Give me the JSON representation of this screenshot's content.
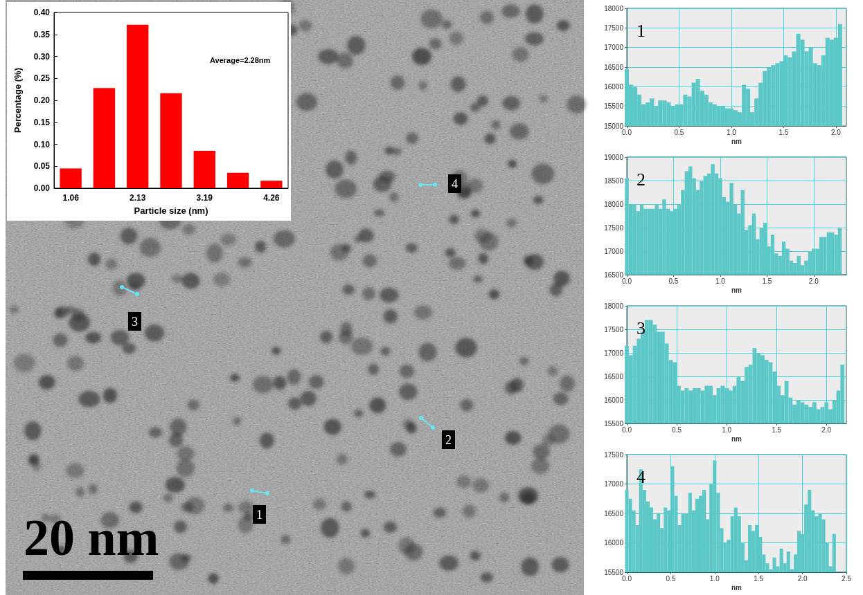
{
  "micrograph": {
    "scale_bar": "20 nm",
    "markers": [
      "1",
      "2",
      "3",
      "4"
    ]
  },
  "chart_data": [
    {
      "type": "bar",
      "x_label": "Particle size (nm)",
      "y_label": "Percentage (%)",
      "annotations": [
        "Average=2.28nm"
      ],
      "categories": [
        "1.06",
        null,
        "2.13",
        null,
        "3.19",
        null,
        "4.26"
      ],
      "values": [
        0.045,
        0.228,
        0.372,
        0.216,
        0.085,
        0.035,
        0.017
      ],
      "color": "#ff0000",
      "ylim": [
        0,
        0.4
      ],
      "yticks": [
        {
          "value": 0,
          "label": "0.00"
        },
        {
          "value": 0.05,
          "label": "0.05"
        },
        {
          "value": 0.1,
          "label": "0.10"
        },
        {
          "value": 0.15,
          "label": "0.15"
        },
        {
          "value": 0.2,
          "label": "0.20"
        },
        {
          "value": 0.25,
          "label": "0.25"
        },
        {
          "value": 0.3,
          "label": "0.30"
        },
        {
          "value": 0.35,
          "label": "0.35"
        },
        {
          "value": 0.4,
          "label": "0.40"
        }
      ],
      "grid": false
    },
    {
      "type": "bar",
      "title": "1",
      "x_label": "nm",
      "x": [
        0,
        0.04,
        0.08,
        0.12,
        0.16,
        0.2,
        0.24,
        0.28,
        0.32,
        0.36,
        0.4,
        0.44,
        0.48,
        0.52,
        0.56,
        0.6,
        0.64,
        0.68,
        0.72,
        0.76,
        0.8,
        0.84,
        0.88,
        0.92,
        0.96,
        1,
        1.04,
        1.08,
        1.12,
        1.16,
        1.2,
        1.24,
        1.28,
        1.32,
        1.36,
        1.4,
        1.44,
        1.48,
        1.52,
        1.56,
        1.6,
        1.64,
        1.68,
        1.72,
        1.76,
        1.8,
        1.84,
        1.88,
        1.92,
        1.96,
        2,
        2.04
      ],
      "values": [
        16450,
        16050,
        16000,
        15800,
        15550,
        15600,
        15700,
        15500,
        15650,
        15650,
        15600,
        15500,
        15550,
        15550,
        15800,
        15750,
        16100,
        16200,
        15900,
        15800,
        15600,
        15550,
        15500,
        15500,
        15450,
        15450,
        15400,
        15350,
        16050,
        15950,
        15350,
        15700,
        16100,
        16400,
        16500,
        16550,
        16600,
        16650,
        16800,
        16750,
        16900,
        17350,
        17200,
        16900,
        17000,
        16600,
        16550,
        16800,
        17250,
        17200,
        17250,
        17600
      ],
      "color": "#5cc8c8",
      "xlim": [
        0,
        2.1
      ],
      "xticks": [
        {
          "value": 0,
          "label": "0.0"
        },
        {
          "value": 0.5,
          "label": "0.5"
        },
        {
          "value": 1,
          "label": "1.0"
        },
        {
          "value": 1.5,
          "label": "1.5"
        },
        {
          "value": 2,
          "label": "2.0"
        }
      ],
      "ylim": [
        15000,
        18000
      ],
      "yticks": [
        15000,
        15500,
        16000,
        16500,
        17000,
        17500,
        18000
      ],
      "grid": true
    },
    {
      "type": "bar",
      "title": "2",
      "x_label": "nm",
      "x": [
        0,
        0.04,
        0.08,
        0.12,
        0.16,
        0.2,
        0.24,
        0.28,
        0.32,
        0.36,
        0.4,
        0.44,
        0.48,
        0.52,
        0.56,
        0.6,
        0.64,
        0.68,
        0.72,
        0.76,
        0.8,
        0.84,
        0.88,
        0.92,
        0.96,
        1,
        1.04,
        1.08,
        1.12,
        1.16,
        1.2,
        1.24,
        1.28,
        1.32,
        1.36,
        1.4,
        1.44,
        1.48,
        1.52,
        1.56,
        1.6,
        1.64,
        1.68,
        1.72,
        1.76,
        1.8,
        1.84,
        1.88,
        1.92,
        1.96,
        2,
        2.04,
        2.08,
        2.12,
        2.16,
        2.2,
        2.24,
        2.28
      ],
      "values": [
        18550,
        18000,
        18000,
        17850,
        18000,
        17900,
        17900,
        17900,
        18000,
        17900,
        18100,
        17900,
        17850,
        17900,
        18000,
        18300,
        18700,
        18800,
        18550,
        18300,
        18500,
        18600,
        18650,
        18850,
        18650,
        18550,
        18150,
        18050,
        18450,
        18000,
        17800,
        18300,
        17450,
        17550,
        17800,
        17250,
        17500,
        17600,
        17100,
        17350,
        16950,
        16900,
        17200,
        17050,
        16800,
        16750,
        16900,
        16700,
        16800,
        17000,
        17050,
        17050,
        17300,
        17300,
        17400,
        17400,
        17350,
        17500
      ],
      "color": "#5cc8c8",
      "xlim": [
        0,
        2.35
      ],
      "xticks": [
        {
          "value": 0,
          "label": "0.0"
        },
        {
          "value": 0.5,
          "label": "0.5"
        },
        {
          "value": 1,
          "label": "1.0"
        },
        {
          "value": 1.5,
          "label": "1.5"
        },
        {
          "value": 2,
          "label": "2.0"
        }
      ],
      "ylim": [
        16500,
        19000
      ],
      "yticks": [
        16500,
        17000,
        17500,
        18000,
        18500,
        19000
      ],
      "grid": true
    },
    {
      "type": "bar",
      "title": "3",
      "x_label": "nm",
      "x": [
        0,
        0.04,
        0.08,
        0.12,
        0.16,
        0.2,
        0.24,
        0.28,
        0.32,
        0.36,
        0.4,
        0.44,
        0.48,
        0.52,
        0.56,
        0.6,
        0.64,
        0.68,
        0.72,
        0.76,
        0.8,
        0.84,
        0.88,
        0.92,
        0.96,
        1,
        1.04,
        1.08,
        1.12,
        1.16,
        1.2,
        1.24,
        1.28,
        1.32,
        1.36,
        1.4,
        1.44,
        1.48,
        1.52,
        1.56,
        1.6,
        1.64,
        1.68,
        1.72,
        1.76,
        1.8,
        1.84,
        1.88,
        1.92,
        1.96,
        2,
        2.04,
        2.08,
        2.12,
        2.16
      ],
      "values": [
        17150,
        16950,
        17150,
        17300,
        17450,
        17700,
        17700,
        17600,
        17450,
        17450,
        17200,
        16850,
        16800,
        16300,
        16200,
        16250,
        16200,
        16250,
        16250,
        16200,
        16300,
        16300,
        16100,
        16250,
        16300,
        16250,
        16200,
        16300,
        16500,
        16400,
        16700,
        16750,
        17100,
        17000,
        16950,
        16850,
        16800,
        16600,
        16300,
        16100,
        16400,
        16050,
        15900,
        16000,
        15950,
        15900,
        15850,
        15950,
        15800,
        15850,
        15950,
        15800,
        16000,
        16200,
        16750
      ],
      "color": "#5cc8c8",
      "xlim": [
        0,
        2.2
      ],
      "xticks": [
        {
          "value": 0,
          "label": "0.0"
        },
        {
          "value": 0.5,
          "label": "0.5"
        },
        {
          "value": 1,
          "label": "1.0"
        },
        {
          "value": 1.5,
          "label": "1.5"
        },
        {
          "value": 2,
          "label": "2.0"
        }
      ],
      "ylim": [
        15500,
        18000
      ],
      "yticks": [
        15500,
        16000,
        16500,
        17000,
        17500,
        18000
      ],
      "grid": true
    },
    {
      "type": "bar",
      "title": "4",
      "x_label": "nm",
      "x": [
        0,
        0.04,
        0.08,
        0.12,
        0.16,
        0.2,
        0.24,
        0.28,
        0.32,
        0.36,
        0.4,
        0.44,
        0.48,
        0.52,
        0.56,
        0.6,
        0.64,
        0.68,
        0.72,
        0.76,
        0.8,
        0.84,
        0.88,
        0.92,
        0.96,
        1,
        1.04,
        1.08,
        1.12,
        1.16,
        1.2,
        1.24,
        1.28,
        1.32,
        1.36,
        1.4,
        1.44,
        1.48,
        1.52,
        1.56,
        1.6,
        1.64,
        1.68,
        1.72,
        1.76,
        1.8,
        1.84,
        1.88,
        1.92,
        1.96,
        2,
        2.04,
        2.08,
        2.12,
        2.16,
        2.2,
        2.24,
        2.28,
        2.32,
        2.36
      ],
      "values": [
        16900,
        16750,
        16550,
        16300,
        17250,
        16900,
        16700,
        16600,
        16400,
        16500,
        16250,
        16600,
        16550,
        17300,
        16800,
        16300,
        16500,
        16500,
        16850,
        16550,
        16750,
        16800,
        16900,
        16400,
        17000,
        17400,
        16850,
        16250,
        16000,
        16050,
        16450,
        16600,
        16450,
        16000,
        15700,
        16300,
        16200,
        16300,
        16100,
        15800,
        15650,
        15550,
        15750,
        15600,
        15900,
        15650,
        15850,
        15550,
        15800,
        16200,
        16150,
        16650,
        16900,
        16550,
        16450,
        16500,
        16400,
        16000,
        15600,
        16150
      ],
      "color": "#5cc8c8",
      "xlim": [
        0,
        2.5
      ],
      "xticks": [
        {
          "value": 0,
          "label": "0.0"
        },
        {
          "value": 0.5,
          "label": "0.5"
        },
        {
          "value": 1,
          "label": "1.0"
        },
        {
          "value": 1.5,
          "label": "1.5"
        },
        {
          "value": 2,
          "label": "2.0"
        },
        {
          "value": 2.5,
          "label": "2.5"
        }
      ],
      "ylim": [
        15500,
        17500
      ],
      "yticks": [
        15500,
        16000,
        16500,
        17000,
        17500
      ],
      "grid": true
    }
  ]
}
